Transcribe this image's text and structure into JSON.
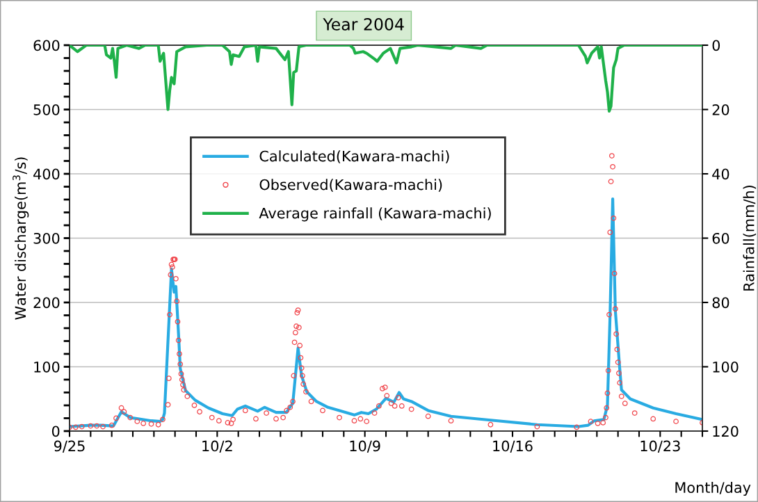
{
  "chart_data": {
    "type": "line",
    "title": "Year 2004",
    "xlabel": "Month/day",
    "ylabel": "Water discharge(m$^{3}$/s)",
    "y2label": "Rainfall(mm/h)",
    "xlim": [
      "2004-09-25",
      "2004-10-25"
    ],
    "xticks": [
      {
        "value": "2004-09-25",
        "label": "9/25"
      },
      {
        "value": "2004-09-26",
        "label": null
      },
      {
        "value": "2004-09-27",
        "label": null
      },
      {
        "value": "2004-09-28",
        "label": null
      },
      {
        "value": "2004-09-29",
        "label": null
      },
      {
        "value": "2004-09-30",
        "label": null
      },
      {
        "value": "2004-10-01",
        "label": null
      },
      {
        "value": "2004-10-02",
        "label": "10/2"
      },
      {
        "value": "2004-10-03",
        "label": null
      },
      {
        "value": "2004-10-04",
        "label": null
      },
      {
        "value": "2004-10-05",
        "label": null
      },
      {
        "value": "2004-10-06",
        "label": null
      },
      {
        "value": "2004-10-07",
        "label": null
      },
      {
        "value": "2004-10-08",
        "label": null
      },
      {
        "value": "2004-10-09",
        "label": "10/9"
      },
      {
        "value": "2004-10-10",
        "label": null
      },
      {
        "value": "2004-10-11",
        "label": null
      },
      {
        "value": "2004-10-12",
        "label": null
      },
      {
        "value": "2004-10-13",
        "label": null
      },
      {
        "value": "2004-10-14",
        "label": null
      },
      {
        "value": "2004-10-15",
        "label": null
      },
      {
        "value": "2004-10-16",
        "label": "10/16"
      },
      {
        "value": "2004-10-17",
        "label": null
      },
      {
        "value": "2004-10-18",
        "label": null
      },
      {
        "value": "2004-10-19",
        "label": null
      },
      {
        "value": "2004-10-20",
        "label": null
      },
      {
        "value": "2004-10-21",
        "label": null
      },
      {
        "value": "2004-10-22",
        "label": null
      },
      {
        "value": "2004-10-23",
        "label": "10/23"
      },
      {
        "value": "2004-10-24",
        "label": null
      },
      {
        "value": "2004-10-25",
        "label": null
      }
    ],
    "ylim": [
      0,
      600
    ],
    "yticks": [
      0,
      {
        "value": 20,
        "label": null
      },
      {
        "value": 40,
        "label": null
      },
      {
        "value": 60,
        "label": null
      },
      {
        "value": 80,
        "label": null
      },
      100,
      {
        "value": 120,
        "label": null
      },
      {
        "value": 140,
        "label": null
      },
      {
        "value": 160,
        "label": null
      },
      {
        "value": 180,
        "label": null
      },
      200,
      {
        "value": 220,
        "label": null
      },
      {
        "value": 240,
        "label": null
      },
      {
        "value": 260,
        "label": null
      },
      {
        "value": 280,
        "label": null
      },
      300,
      {
        "value": 320,
        "label": null
      },
      {
        "value": 340,
        "label": null
      },
      {
        "value": 360,
        "label": null
      },
      {
        "value": 380,
        "label": null
      },
      400,
      {
        "value": 420,
        "label": null
      },
      {
        "value": 440,
        "label": null
      },
      {
        "value": 460,
        "label": null
      },
      {
        "value": 480,
        "label": null
      },
      500,
      {
        "value": 520,
        "label": null
      },
      {
        "value": 540,
        "label": null
      },
      {
        "value": 560,
        "label": null
      },
      {
        "value": 580,
        "label": null
      },
      600
    ],
    "y2lim": [
      120,
      0
    ],
    "y2ticks": [
      0,
      20,
      40,
      60,
      80,
      100,
      120
    ],
    "grid": "y",
    "legend": "top center",
    "series": [
      {
        "name": "Calculated(Kawara-machi)",
        "color": "#29abe2",
        "x": [
          "2004-09-25T00:00",
          "2004-09-25T12:00",
          "2004-09-26T00:00",
          "2004-09-26T12:00",
          "2004-09-27T02:00",
          "2004-09-27T11:00",
          "2004-09-27T21:00",
          "2004-09-28T21:00",
          "2004-09-29T07:00",
          "2004-09-29T10:00",
          "2004-09-29T12:00",
          "2004-09-29T20:00",
          "2004-09-29T23:00",
          "2004-09-30T01:00",
          "2004-09-30T04:00",
          "2004-09-30T06:00",
          "2004-09-30T12:00",
          "2004-09-30T23:00",
          "2004-10-01T14:00",
          "2004-10-02T06:00",
          "2004-10-02T17:00",
          "2004-10-02T23:00",
          "2004-10-03T08:00",
          "2004-10-03T22:00",
          "2004-10-04T06:00",
          "2004-10-04T19:00",
          "2004-10-05T07:00",
          "2004-10-05T10:00",
          "2004-10-05T14:00",
          "2004-10-05T20:00",
          "2004-10-06T00:00",
          "2004-10-06T06:00",
          "2004-10-06T17:00",
          "2004-10-07T06:00",
          "2004-10-07T19:00",
          "2004-10-08T12:00",
          "2004-10-08T20:00",
          "2004-10-09T04:00",
          "2004-10-09T13:00",
          "2004-10-10T00:00",
          "2004-10-10T09:00",
          "2004-10-10T15:00",
          "2004-10-10T20:00",
          "2004-10-11T05:00",
          "2004-10-12T00:00",
          "2004-10-13T02:00",
          "2004-10-14T23:00",
          "2004-10-17T04:00",
          "2004-10-19T03:00",
          "2004-10-19T14:00",
          "2004-10-19T21:00",
          "2004-10-20T08:00",
          "2004-10-20T12:00",
          "2004-10-20T15:00",
          "2004-10-20T18:00",
          "2004-10-20T21:00",
          "2004-10-21T02:00",
          "2004-10-21T04:00",
          "2004-10-21T14:00",
          "2004-10-22T16:00",
          "2004-10-23T18:00",
          "2004-10-25T00:00"
        ],
        "values": [
          7,
          8,
          9,
          9,
          8,
          30,
          21,
          16,
          15,
          18,
          28,
          252,
          216,
          225,
          151,
          97,
          63,
          48,
          36,
          27,
          24,
          34,
          39,
          31,
          37,
          29,
          29,
          36,
          43,
          129,
          86,
          61,
          46,
          37,
          32,
          25,
          29,
          27,
          34,
          51,
          45,
          60,
          50,
          46,
          32,
          23,
          17,
          10,
          7,
          9,
          16,
          18,
          40,
          181,
          361,
          187,
          97,
          64,
          50,
          36,
          27,
          18
        ]
      },
      {
        "name": "Observed(Kawara-machi)",
        "type": "scatter",
        "marker": "circle",
        "color": "#f0454b",
        "x": [
          "2004-09-25T00:00",
          "2004-09-25T07:00",
          "2004-09-25T14:00",
          "2004-09-26T00:00",
          "2004-09-26T07:00",
          "2004-09-26T14:00",
          "2004-09-27T00:00",
          "2004-09-27T05:00",
          "2004-09-27T11:00",
          "2004-09-27T14:00",
          "2004-09-27T21:00",
          "2004-09-28T05:00",
          "2004-09-28T12:00",
          "2004-09-28T21:00",
          "2004-09-29T05:00",
          "2004-09-29T10:00",
          "2004-09-29T16:00",
          "2004-09-29T17:00",
          "2004-09-29T18:00",
          "2004-09-29T19:00",
          "2004-09-29T20:00",
          "2004-09-29T21:00",
          "2004-09-29T22:00",
          "2004-09-29T23:00",
          "2004-09-30T00:00",
          "2004-09-30T01:00",
          "2004-09-30T02:00",
          "2004-09-30T03:00",
          "2004-09-30T04:00",
          "2004-09-30T05:00",
          "2004-09-30T06:00",
          "2004-09-30T07:00",
          "2004-09-30T08:00",
          "2004-09-30T09:00",
          "2004-09-30T10:00",
          "2004-09-30T14:00",
          "2004-09-30T22:00",
          "2004-10-01T04:00",
          "2004-10-01T18:00",
          "2004-10-02T02:00",
          "2004-10-02T12:00",
          "2004-10-02T16:00",
          "2004-10-02T18:00",
          "2004-10-03T08:00",
          "2004-10-03T20:00",
          "2004-10-04T08:00",
          "2004-10-04T19:00",
          "2004-10-05T03:00",
          "2004-10-05T07:00",
          "2004-10-05T11:00",
          "2004-10-05T14:00",
          "2004-10-05T15:00",
          "2004-10-05T16:00",
          "2004-10-05T17:00",
          "2004-10-05T18:00",
          "2004-10-05T19:00",
          "2004-10-05T20:00",
          "2004-10-05T21:00",
          "2004-10-05T22:00",
          "2004-10-05T23:00",
          "2004-10-06T00:00",
          "2004-10-06T01:00",
          "2004-10-06T02:00",
          "2004-10-06T05:00",
          "2004-10-06T11:00",
          "2004-10-07T00:00",
          "2004-10-07T19:00",
          "2004-10-08T12:00",
          "2004-10-08T19:00",
          "2004-10-09T02:00",
          "2004-10-09T11:00",
          "2004-10-09T16:00",
          "2004-10-09T20:00",
          "2004-10-09T23:00",
          "2004-10-10T01:00",
          "2004-10-10T06:00",
          "2004-10-10T10:00",
          "2004-10-10T14:00",
          "2004-10-10T18:00",
          "2004-10-11T05:00",
          "2004-10-12T00:00",
          "2004-10-13T02:00",
          "2004-10-14T23:00",
          "2004-10-17T04:00",
          "2004-10-19T01:00",
          "2004-10-19T17:00",
          "2004-10-20T01:00",
          "2004-10-20T07:00",
          "2004-10-20T10:00",
          "2004-10-20T11:00",
          "2004-10-20T12:00",
          "2004-10-20T13:00",
          "2004-10-20T14:00",
          "2004-10-20T15:00",
          "2004-10-20T16:00",
          "2004-10-20T17:00",
          "2004-10-20T18:00",
          "2004-10-20T19:00",
          "2004-10-20T20:00",
          "2004-10-20T21:00",
          "2004-10-20T22:00",
          "2004-10-20T23:00",
          "2004-10-21T00:00",
          "2004-10-21T01:00",
          "2004-10-21T02:00",
          "2004-10-21T04:00",
          "2004-10-21T08:00",
          "2004-10-21T19:00",
          "2004-10-22T16:00",
          "2004-10-23T18:00",
          "2004-10-25T00:00"
        ],
        "values": [
          6,
          6,
          7,
          8,
          8,
          7,
          9,
          20,
          36,
          30,
          21,
          15,
          12,
          11,
          10,
          18,
          41,
          82,
          181,
          243,
          259,
          255,
          267,
          267,
          267,
          237,
          202,
          170,
          141,
          120,
          104,
          89,
          80,
          72,
          64,
          54,
          40,
          30,
          21,
          16,
          13,
          12,
          18,
          32,
          19,
          28,
          19,
          21,
          32,
          37,
          46,
          86,
          138,
          153,
          163,
          184,
          188,
          161,
          133,
          114,
          98,
          86,
          73,
          61,
          46,
          32,
          21,
          16,
          19,
          15,
          28,
          39,
          66,
          68,
          55,
          43,
          39,
          52,
          39,
          34,
          23,
          16,
          10,
          7,
          6,
          15,
          12,
          13,
          21,
          36,
          59,
          94,
          181,
          309,
          388,
          428,
          411,
          331,
          245,
          190,
          151,
          127,
          107,
          90,
          75,
          54,
          43,
          28,
          19,
          15,
          13
        ]
      },
      {
        "name": "Average rainfall (Kawara-machi)",
        "axis": "y2",
        "color": "#1fb14a",
        "x": [
          "2004-09-25T00:00",
          "2004-09-25T09:00",
          "2004-09-25T19:00",
          "2004-09-26T16:00",
          "2004-09-26T18:00",
          "2004-09-26T23:00",
          "2004-09-27T01:00",
          "2004-09-27T03:00",
          "2004-09-27T05:00",
          "2004-09-27T07:00",
          "2004-09-27T17:00",
          "2004-09-28T07:00",
          "2004-09-28T14:00",
          "2004-09-29T05:00",
          "2004-09-29T07:00",
          "2004-09-29T11:00",
          "2004-09-29T16:00",
          "2004-09-29T18:00",
          "2004-09-29T20:00",
          "2004-09-29T23:00",
          "2004-09-30T02:00",
          "2004-09-30T12:00",
          "2004-10-01T12:00",
          "2004-10-02T06:00",
          "2004-10-02T14:00",
          "2004-10-02T16:00",
          "2004-10-02T18:00",
          "2004-10-03T01:00",
          "2004-10-03T07:00",
          "2004-10-03T20:00",
          "2004-10-03T22:00",
          "2004-10-04T00:00",
          "2004-10-04T19:00",
          "2004-10-05T05:00",
          "2004-10-05T09:00",
          "2004-10-05T13:00",
          "2004-10-05T15:00",
          "2004-10-05T18:00",
          "2004-10-05T21:00",
          "2004-10-06T05:00",
          "2004-10-08T07:00",
          "2004-10-08T11:00",
          "2004-10-08T13:00",
          "2004-10-08T22:00",
          "2004-10-09T02:00",
          "2004-10-09T11:00",
          "2004-10-09T14:00",
          "2004-10-09T21:00",
          "2004-10-10T05:00",
          "2004-10-10T12:00",
          "2004-10-10T16:00",
          "2004-10-11T05:00",
          "2004-10-11T12:00",
          "2004-10-13T02:00",
          "2004-10-13T07:00",
          "2004-10-14T12:00",
          "2004-10-14T19:00",
          "2004-10-19T03:00",
          "2004-10-19T11:00",
          "2004-10-19T13:00",
          "2004-10-19T18:00",
          "2004-10-20T01:00",
          "2004-10-20T03:00",
          "2004-10-20T05:00",
          "2004-10-20T10:00",
          "2004-10-20T12:00",
          "2004-10-20T14:00",
          "2004-10-20T16:00",
          "2004-10-20T19:00",
          "2004-10-20T22:00",
          "2004-10-21T00:00",
          "2004-10-21T07:00",
          "2004-10-25T00:00"
        ],
        "values": [
          0,
          2,
          0,
          0,
          3,
          4,
          1,
          5,
          10,
          1,
          0,
          1,
          0,
          0,
          5,
          2.5,
          20,
          14,
          10,
          12,
          2,
          0.5,
          0,
          0,
          2,
          6,
          3,
          3.5,
          0.5,
          0,
          5,
          0.5,
          1,
          4.5,
          2,
          18.5,
          8.5,
          8,
          0.5,
          0,
          0,
          1,
          2.5,
          2,
          2.5,
          4.3,
          5,
          2.5,
          1,
          5.5,
          1,
          0.5,
          0,
          1,
          0,
          1,
          0,
          0,
          3.5,
          5.5,
          2.5,
          0.5,
          4,
          0.5,
          11,
          14.5,
          20.5,
          19,
          7,
          4.5,
          1,
          0,
          0
        ]
      }
    ]
  }
}
